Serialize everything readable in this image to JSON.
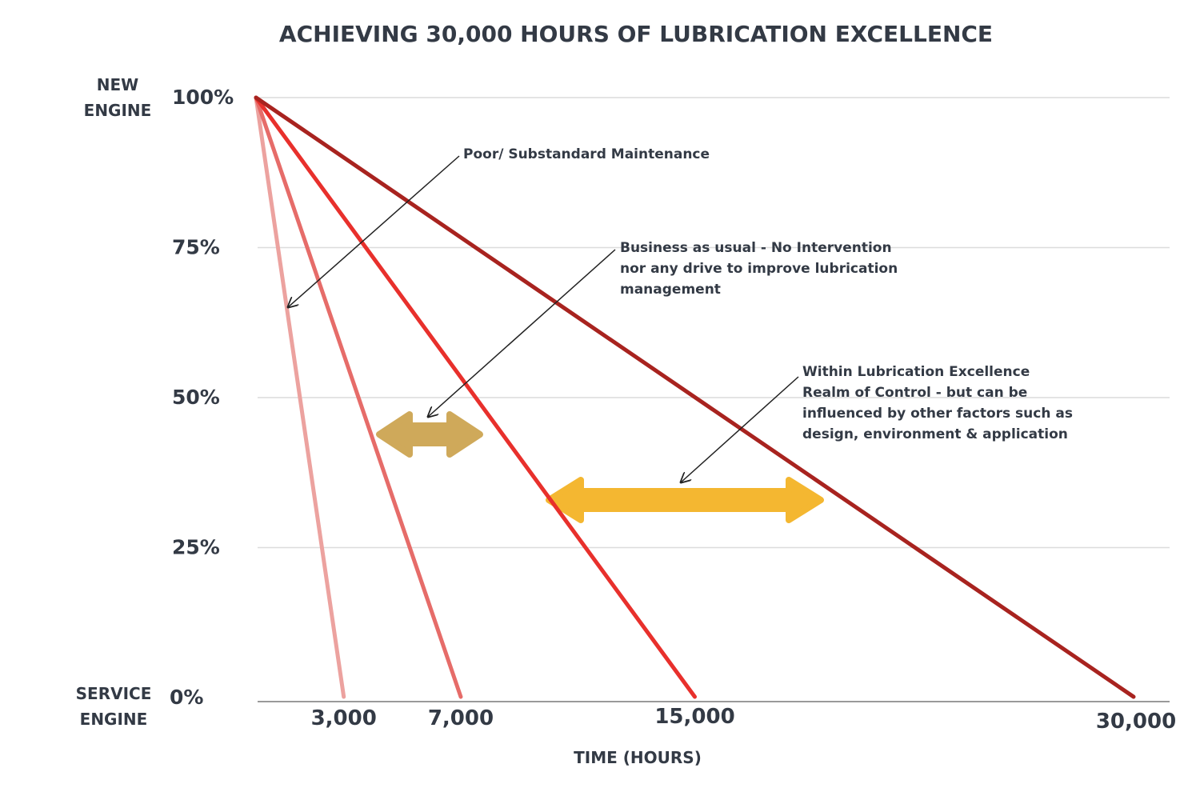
{
  "chart_data": {
    "type": "line",
    "title": "ACHIEVING 30,000 HOURS OF LUBRICATION EXCELLENCE",
    "xlabel": "TIME (HOURS)",
    "ylabel": "",
    "y_ticks": [
      "100%",
      "75%",
      "50%",
      "25%",
      "0%"
    ],
    "y_tick_values": [
      100,
      75,
      50,
      25,
      0
    ],
    "x_ticks": [
      "3,000",
      "7,000",
      "15,000",
      "30,000"
    ],
    "x_tick_values": [
      3000,
      7000,
      15000,
      30000
    ],
    "y_top_label": [
      "NEW",
      "ENGINE"
    ],
    "y_bottom_label": [
      "SERVICE",
      "ENGINE"
    ],
    "grid": true,
    "legend": "none",
    "series": [
      {
        "color": "#eca29f",
        "points": [
          [
            0,
            100
          ],
          [
            3000,
            0
          ]
        ]
      },
      {
        "color": "#e66c69",
        "points": [
          [
            0,
            100
          ],
          [
            7000,
            0
          ]
        ]
      },
      {
        "color": "#e8302c",
        "points": [
          [
            0,
            100
          ],
          [
            15000,
            0
          ]
        ]
      },
      {
        "color": "#a8231f",
        "points": [
          [
            0,
            100
          ],
          [
            30000,
            0
          ]
        ]
      }
    ],
    "annotations": [
      {
        "lines": [
          "Poor/ Substandard Maintenance"
        ]
      },
      {
        "lines": [
          "Business as usual - No Intervention",
          "nor any drive to improve lubrication",
          "management"
        ]
      },
      {
        "lines": [
          "Within Lubrication Excellence",
          "Realm of Control - but can be",
          "influenced by other factors such as",
          "design, environment & application"
        ]
      }
    ],
    "range_arrows": [
      {
        "from_x": 3000,
        "to_x": 7000,
        "y": 44,
        "color": "#cfa95a"
      },
      {
        "from_x": 7000,
        "to_x": 15000,
        "y": 33,
        "color": "#f4b731"
      }
    ]
  }
}
